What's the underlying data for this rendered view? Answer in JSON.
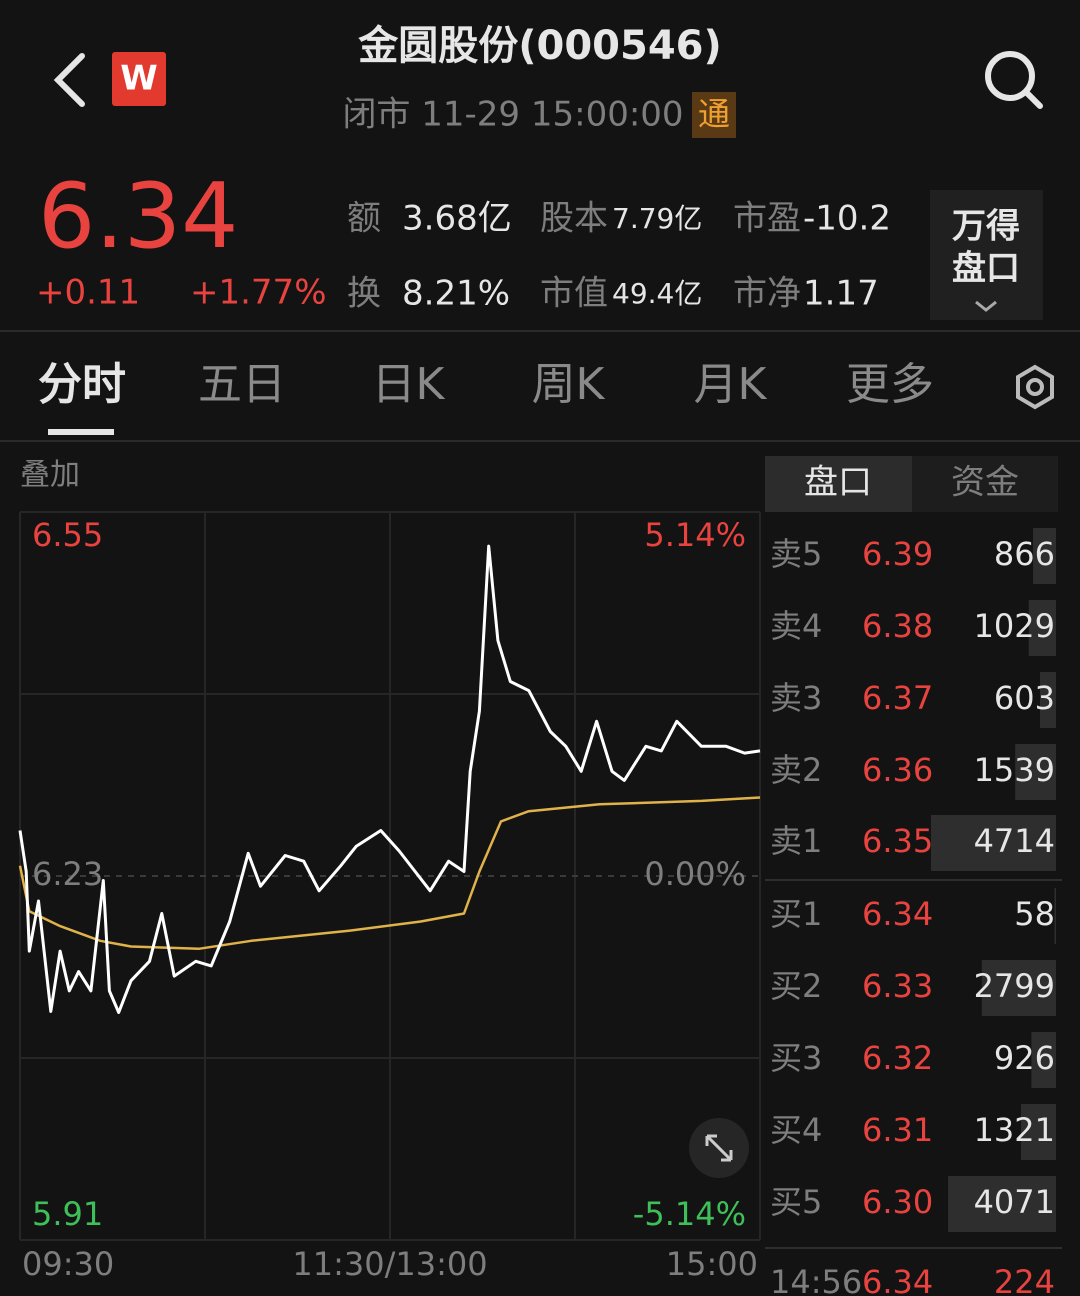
{
  "header": {
    "logo": "W",
    "title": "金圆股份(000546)",
    "status": "闭市 11-29 15:00:00",
    "badge": "通"
  },
  "quote": {
    "price": "6.34",
    "change": "+0.11",
    "change_pct": "+1.77%",
    "stats": [
      {
        "label": "额",
        "value": "3.68亿"
      },
      {
        "label": "股本",
        "value": "7.79亿"
      },
      {
        "label": "市盈",
        "value": "-10.2"
      },
      {
        "label": "换",
        "value": "8.21%"
      },
      {
        "label": "市值",
        "value": "49.4亿"
      },
      {
        "label": "市净",
        "value": "1.17"
      }
    ],
    "button": [
      "万得",
      "盘口"
    ]
  },
  "tabs": [
    "分时",
    "五日",
    "日K",
    "周K",
    "月K",
    "更多"
  ],
  "overlay": "叠加",
  "chart_data": {
    "type": "line",
    "xlim": [
      0,
      240
    ],
    "xticks": [
      {
        "value": 0,
        "label": "09:30"
      },
      {
        "value": 120,
        "label": "11:30/13:00"
      },
      {
        "value": 240,
        "label": "15:00"
      }
    ],
    "ylim": [
      5.91,
      6.55
    ],
    "yticks": [
      5.91,
      6.23,
      6.55
    ],
    "y2lim": [
      -5.14,
      5.14
    ],
    "y2ticks": [
      {
        "value": -5.14,
        "label": "-5.14%"
      },
      {
        "value": 0,
        "label": "0.00%"
      },
      {
        "value": 5.14,
        "label": "5.14%"
      }
    ],
    "series": [
      {
        "color": "#ffffff",
        "x": [
          0,
          2,
          3,
          6,
          10,
          13,
          16,
          19,
          23,
          27,
          29,
          32,
          36,
          42,
          46,
          50,
          57,
          62,
          68,
          74,
          78,
          86,
          92,
          97,
          104,
          109,
          117,
          123,
          133,
          139,
          144,
          146,
          149,
          152,
          155,
          159,
          165,
          172,
          177,
          182,
          187,
          192,
          196,
          203,
          208,
          213,
          221,
          229,
          235,
          240
        ],
        "values": [
          6.27,
          6.234,
          6.164,
          6.208,
          6.111,
          6.164,
          6.129,
          6.146,
          6.129,
          6.226,
          6.129,
          6.11,
          6.138,
          6.155,
          6.197,
          6.142,
          6.155,
          6.151,
          6.19,
          6.25,
          6.221,
          6.248,
          6.243,
          6.217,
          6.239,
          6.256,
          6.27,
          6.252,
          6.217,
          6.243,
          6.234,
          6.322,
          6.375,
          6.52,
          6.437,
          6.401,
          6.393,
          6.357,
          6.344,
          6.322,
          6.366,
          6.322,
          6.314,
          6.344,
          6.34,
          6.366,
          6.344,
          6.344,
          6.338,
          6.34
        ]
      },
      {
        "color": "#e0b24a",
        "x": [
          0,
          3,
          13,
          26,
          36,
          58,
          75,
          107,
          130,
          144,
          149,
          156,
          165,
          188,
          221,
          240
        ],
        "values": [
          6.239,
          6.199,
          6.186,
          6.173,
          6.168,
          6.166,
          6.173,
          6.182,
          6.19,
          6.197,
          6.234,
          6.278,
          6.287,
          6.293,
          6.296,
          6.299
        ]
      }
    ]
  },
  "order_book": {
    "tabs": [
      "盘口",
      "资金"
    ],
    "rows": [
      {
        "label": "卖5",
        "price": "6.39",
        "volume": 866
      },
      {
        "label": "卖4",
        "price": "6.38",
        "volume": 1029
      },
      {
        "label": "卖3",
        "price": "6.37",
        "volume": 603
      },
      {
        "label": "卖2",
        "price": "6.36",
        "volume": 1539
      },
      {
        "label": "卖1",
        "price": "6.35",
        "volume": 4714
      },
      {
        "label": "买1",
        "price": "6.34",
        "volume": 58
      },
      {
        "label": "买2",
        "price": "6.33",
        "volume": 2799
      },
      {
        "label": "买3",
        "price": "6.32",
        "volume": 926
      },
      {
        "label": "买4",
        "price": "6.31",
        "volume": 1321
      },
      {
        "label": "买5",
        "price": "6.30",
        "volume": 4071
      }
    ],
    "last_trade": {
      "time": "14:56",
      "price": "6.34",
      "volume": 224
    }
  }
}
